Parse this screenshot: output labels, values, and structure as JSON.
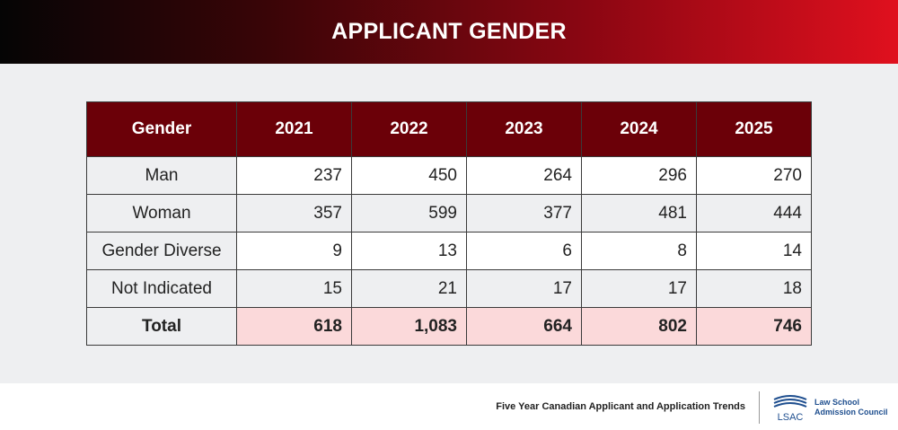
{
  "header": {
    "title": "APPLICANT GENDER"
  },
  "chart_data": {
    "type": "table",
    "columns": [
      "Gender",
      "2021",
      "2022",
      "2023",
      "2024",
      "2025"
    ],
    "rows": [
      {
        "label": "Man",
        "values": [
          "237",
          "450",
          "264",
          "296",
          "270"
        ]
      },
      {
        "label": "Woman",
        "values": [
          "357",
          "599",
          "377",
          "481",
          "444"
        ]
      },
      {
        "label": "Gender Diverse",
        "values": [
          "9",
          "13",
          "6",
          "8",
          "14"
        ]
      },
      {
        "label": "Not Indicated",
        "values": [
          "15",
          "21",
          "17",
          "17",
          "18"
        ]
      },
      {
        "label": "Total",
        "values": [
          "618",
          "1,083",
          "664",
          "802",
          "746"
        ]
      }
    ]
  },
  "footer": {
    "caption": "Five Year Canadian Applicant and Application Trends",
    "logo": {
      "icon": "lsac-logo-icon",
      "mark": "LSAC",
      "org_line1": "Law School",
      "org_line2": "Admission Council"
    }
  },
  "colors": {
    "header_gradient_start": "#050505",
    "header_gradient_end": "#e0101e",
    "table_header_bg": "#6b0008",
    "total_row_bg": "#fbd9da",
    "alt_row_bg": "#eeeff1",
    "logo_blue": "#1f4f8f"
  }
}
